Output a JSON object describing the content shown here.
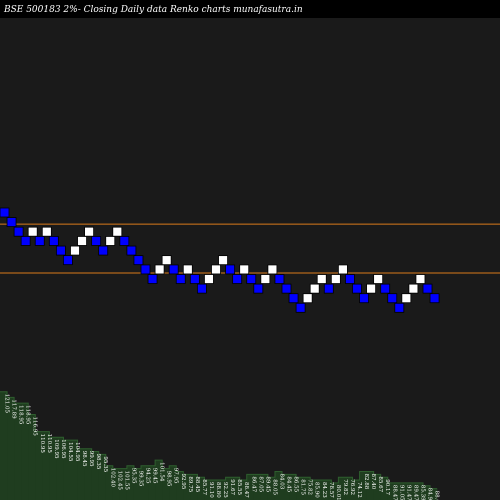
{
  "header": {
    "title": "BSE 500183 2%-  Closing Daily data  Renko  charts munafasutra.in"
  },
  "colors": {
    "background": "#000000",
    "panel": "#1a1a1a",
    "up_brick": "#ffffff",
    "down_brick": "#0000ff",
    "brick_border": "#000000",
    "level_line": "#d97b1b",
    "volume_fill": "#1f3d1f",
    "volume_stroke": "#2e5e2e"
  },
  "chart_data": {
    "type": "renko",
    "brick_size_percent": 2,
    "levels": [
      126.9,
      110.6
    ],
    "bricks": [
      {
        "dir": "down",
        "level": 130.1
      },
      {
        "dir": "down",
        "level": 126.9
      },
      {
        "dir": "down",
        "level": 123.7
      },
      {
        "dir": "down",
        "level": 120.6
      },
      {
        "dir": "up",
        "level": 123.7
      },
      {
        "dir": "down",
        "level": 120.6
      },
      {
        "dir": "up",
        "level": 123.7
      },
      {
        "dir": "down",
        "level": 120.6
      },
      {
        "dir": "down",
        "level": 117.4
      },
      {
        "dir": "down",
        "level": 114.2
      },
      {
        "dir": "up",
        "level": 117.4
      },
      {
        "dir": "up",
        "level": 120.6
      },
      {
        "dir": "up",
        "level": 123.7
      },
      {
        "dir": "down",
        "level": 120.6
      },
      {
        "dir": "down",
        "level": 117.4
      },
      {
        "dir": "up",
        "level": 120.6
      },
      {
        "dir": "up",
        "level": 123.7
      },
      {
        "dir": "down",
        "level": 120.6
      },
      {
        "dir": "down",
        "level": 117.4
      },
      {
        "dir": "down",
        "level": 114.2
      },
      {
        "dir": "down",
        "level": 111.1
      },
      {
        "dir": "down",
        "level": 107.9
      },
      {
        "dir": "up",
        "level": 111.1
      },
      {
        "dir": "up",
        "level": 114.2
      },
      {
        "dir": "down",
        "level": 111.1
      },
      {
        "dir": "down",
        "level": 107.9
      },
      {
        "dir": "up",
        "level": 111.1
      },
      {
        "dir": "down",
        "level": 107.9
      },
      {
        "dir": "down",
        "level": 104.7
      },
      {
        "dir": "up",
        "level": 107.9
      },
      {
        "dir": "up",
        "level": 111.1
      },
      {
        "dir": "up",
        "level": 114.2
      },
      {
        "dir": "down",
        "level": 111.1
      },
      {
        "dir": "down",
        "level": 107.9
      },
      {
        "dir": "up",
        "level": 111.1
      },
      {
        "dir": "down",
        "level": 107.9
      },
      {
        "dir": "down",
        "level": 104.7
      },
      {
        "dir": "up",
        "level": 107.9
      },
      {
        "dir": "up",
        "level": 111.1
      },
      {
        "dir": "down",
        "level": 107.9
      },
      {
        "dir": "down",
        "level": 104.7
      },
      {
        "dir": "down",
        "level": 101.5
      },
      {
        "dir": "down",
        "level": 98.3
      },
      {
        "dir": "up",
        "level": 101.5
      },
      {
        "dir": "up",
        "level": 104.7
      },
      {
        "dir": "up",
        "level": 107.9
      },
      {
        "dir": "down",
        "level": 104.7
      },
      {
        "dir": "up",
        "level": 107.9
      },
      {
        "dir": "up",
        "level": 111.1
      },
      {
        "dir": "down",
        "level": 107.9
      },
      {
        "dir": "down",
        "level": 104.7
      },
      {
        "dir": "down",
        "level": 101.5
      },
      {
        "dir": "up",
        "level": 104.7
      },
      {
        "dir": "up",
        "level": 107.9
      },
      {
        "dir": "down",
        "level": 104.7
      },
      {
        "dir": "down",
        "level": 101.5
      },
      {
        "dir": "down",
        "level": 98.3
      },
      {
        "dir": "up",
        "level": 101.5
      },
      {
        "dir": "up",
        "level": 104.7
      },
      {
        "dir": "up",
        "level": 107.9
      },
      {
        "dir": "down",
        "level": 104.7
      },
      {
        "dir": "down",
        "level": 101.5
      }
    ],
    "volume": [
      38,
      36,
      34,
      34,
      30,
      24,
      24,
      22,
      22,
      21,
      21,
      18,
      18,
      17,
      16,
      12,
      11,
      11,
      12,
      11,
      12,
      12,
      14,
      11,
      12,
      10,
      9,
      9,
      8,
      7,
      7,
      7,
      8,
      8,
      7,
      9,
      9,
      9,
      8,
      10,
      9,
      9,
      8,
      8,
      7,
      7,
      7,
      6,
      8,
      8,
      7,
      10,
      10,
      9,
      8,
      6,
      6,
      6,
      6,
      6,
      5,
      4
    ],
    "price_labels": [
      "121.05",
      "117.89",
      "118.95",
      "118.95",
      "116.95",
      "110.95",
      "110.95",
      "109.95",
      "106.95",
      "104.55",
      "104.95",
      "98.45",
      "99.95",
      "98.35",
      "95.35",
      "102.40",
      "102.45",
      "101.55",
      "95.35",
      "99.35",
      "94.25",
      "99.45",
      "101.54",
      "98.95",
      "97.95",
      "92.95",
      "89.75",
      "88.45",
      "85.77",
      "91.10",
      "88.80",
      "92.25",
      "91.67",
      "85.55",
      "88.47",
      "86.47",
      "87.05",
      "89.45",
      "88.05",
      "84.03",
      "84.45",
      "86.55",
      "81.75",
      "75.82",
      "85.90",
      "84.23",
      "78.57",
      "80.01",
      "79.82",
      "76.92",
      "74.12",
      "82.88",
      "87.40",
      "85.67",
      "90.17",
      "88.47",
      "91.05",
      "91.47",
      "89.47",
      "85.39",
      "84.91",
      "88.67"
    ]
  }
}
